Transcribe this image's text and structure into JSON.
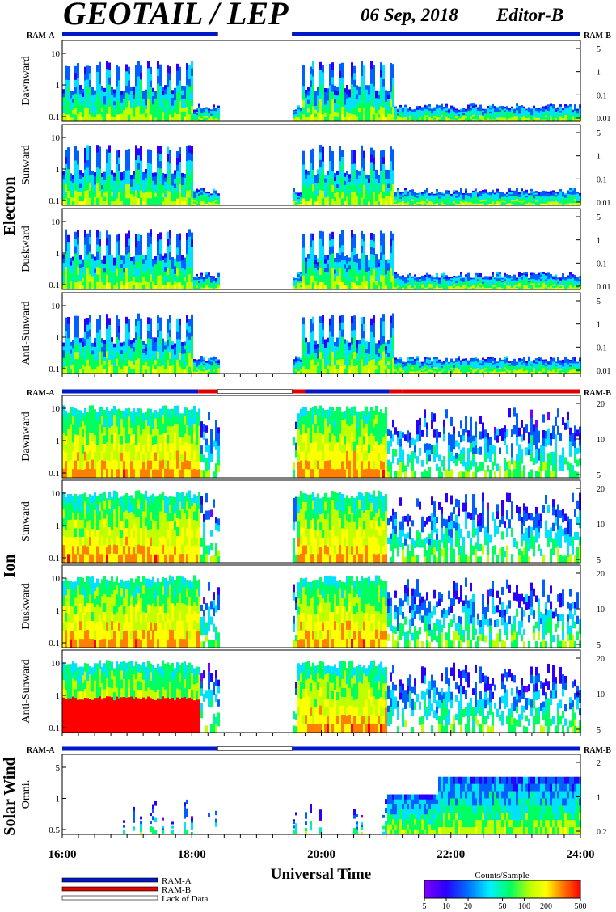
{
  "header": {
    "title": "GEOTAIL / LEP",
    "date": "06 Sep, 2018",
    "editor": "Editor-B"
  },
  "ram_labels": {
    "left": "RAM-A",
    "right": "RAM-B"
  },
  "groups": [
    {
      "label": "Electron",
      "ram_bar": [
        {
          "start": 16.0,
          "end": 18.0,
          "mode": "RAM-A"
        },
        {
          "start": 18.0,
          "end": 18.4,
          "mode": "RAM-A"
        },
        {
          "start": 18.4,
          "end": 19.55,
          "mode": "Lack of Data"
        },
        {
          "start": 19.55,
          "end": 24.0,
          "mode": "RAM-A"
        }
      ],
      "panels": [
        {
          "name": "Dawnward",
          "left_ticks": [
            "0.1",
            "1",
            "10"
          ],
          "right_ticks": [
            "0.01",
            "0.1",
            "1",
            "5"
          ]
        },
        {
          "name": "Sunward",
          "left_ticks": [
            "0.1",
            "1",
            "10"
          ],
          "right_ticks": [
            "0.01",
            "0.1",
            "1",
            "5"
          ]
        },
        {
          "name": "Duskward",
          "left_ticks": [
            "0.1",
            "1",
            "10"
          ],
          "right_ticks": [
            "0.01",
            "0.1",
            "1",
            "5"
          ]
        },
        {
          "name": "Anti-Sunward",
          "left_ticks": [
            "0.1",
            "1",
            "10"
          ],
          "right_ticks": [
            "0.01",
            "0.1",
            "1",
            "5"
          ]
        }
      ]
    },
    {
      "label": "Ion",
      "ram_bar": [
        {
          "start": 16.0,
          "end": 18.1,
          "mode": "RAM-A"
        },
        {
          "start": 18.1,
          "end": 18.4,
          "mode": "RAM-B"
        },
        {
          "start": 18.4,
          "end": 19.55,
          "mode": "Lack of Data"
        },
        {
          "start": 19.55,
          "end": 19.75,
          "mode": "RAM-B"
        },
        {
          "start": 19.75,
          "end": 21.05,
          "mode": "RAM-A"
        },
        {
          "start": 21.05,
          "end": 21.25,
          "mode": "RAM-B"
        },
        {
          "start": 21.25,
          "end": 24.0,
          "mode": "RAM-B"
        }
      ],
      "panels": [
        {
          "name": "Dawnward",
          "left_ticks": [
            "0.1",
            "1",
            "10"
          ],
          "right_ticks": [
            "5",
            "10",
            "20"
          ]
        },
        {
          "name": "Sunward",
          "left_ticks": [
            "0.1",
            "1",
            "10"
          ],
          "right_ticks": [
            "5",
            "10",
            "20"
          ]
        },
        {
          "name": "Duskward",
          "left_ticks": [
            "0.1",
            "1",
            "10"
          ],
          "right_ticks": [
            "5",
            "10",
            "20"
          ]
        },
        {
          "name": "Anti-Sunward",
          "left_ticks": [
            "0.1",
            "1",
            "10"
          ],
          "right_ticks": [
            "5",
            "10",
            "20"
          ]
        }
      ]
    },
    {
      "label": "Solar Wind",
      "ram_bar": [
        {
          "start": 16.0,
          "end": 18.0,
          "mode": "RAM-A"
        },
        {
          "start": 18.0,
          "end": 18.4,
          "mode": "RAM-A"
        },
        {
          "start": 18.4,
          "end": 19.55,
          "mode": "Lack of Data"
        },
        {
          "start": 19.55,
          "end": 24.0,
          "mode": "RAM-A"
        }
      ],
      "panels": [
        {
          "name": "Omni.",
          "left_ticks": [
            "0.5",
            "1",
            "5"
          ],
          "right_ticks": [
            "0.2",
            "1",
            "2"
          ]
        }
      ]
    }
  ],
  "chart_data": {
    "type": "heatmap",
    "x_range": [
      16,
      24
    ],
    "x_ticks": [
      "16:00",
      "18:00",
      "20:00",
      "22:00",
      "24:00"
    ],
    "xlabel": "Universal Time",
    "data_gap": [
      18.4,
      19.55
    ],
    "colorbar": {
      "title": "Counts/Sample",
      "ticks": [
        "5",
        "10",
        "20",
        "50",
        "100",
        "200",
        "500"
      ],
      "colors": [
        "#7a00ff",
        "#2a00ff",
        "#0060ff",
        "#00e0ff",
        "#00ff60",
        "#c0ff00",
        "#ffff00",
        "#ff8000",
        "#ff0000"
      ]
    }
  },
  "legend": [
    {
      "label": "RAM-A",
      "color": "#0018c8"
    },
    {
      "label": "RAM-B",
      "color": "#e00000"
    },
    {
      "label": "Lack of Data",
      "color": "#ffffff"
    }
  ]
}
